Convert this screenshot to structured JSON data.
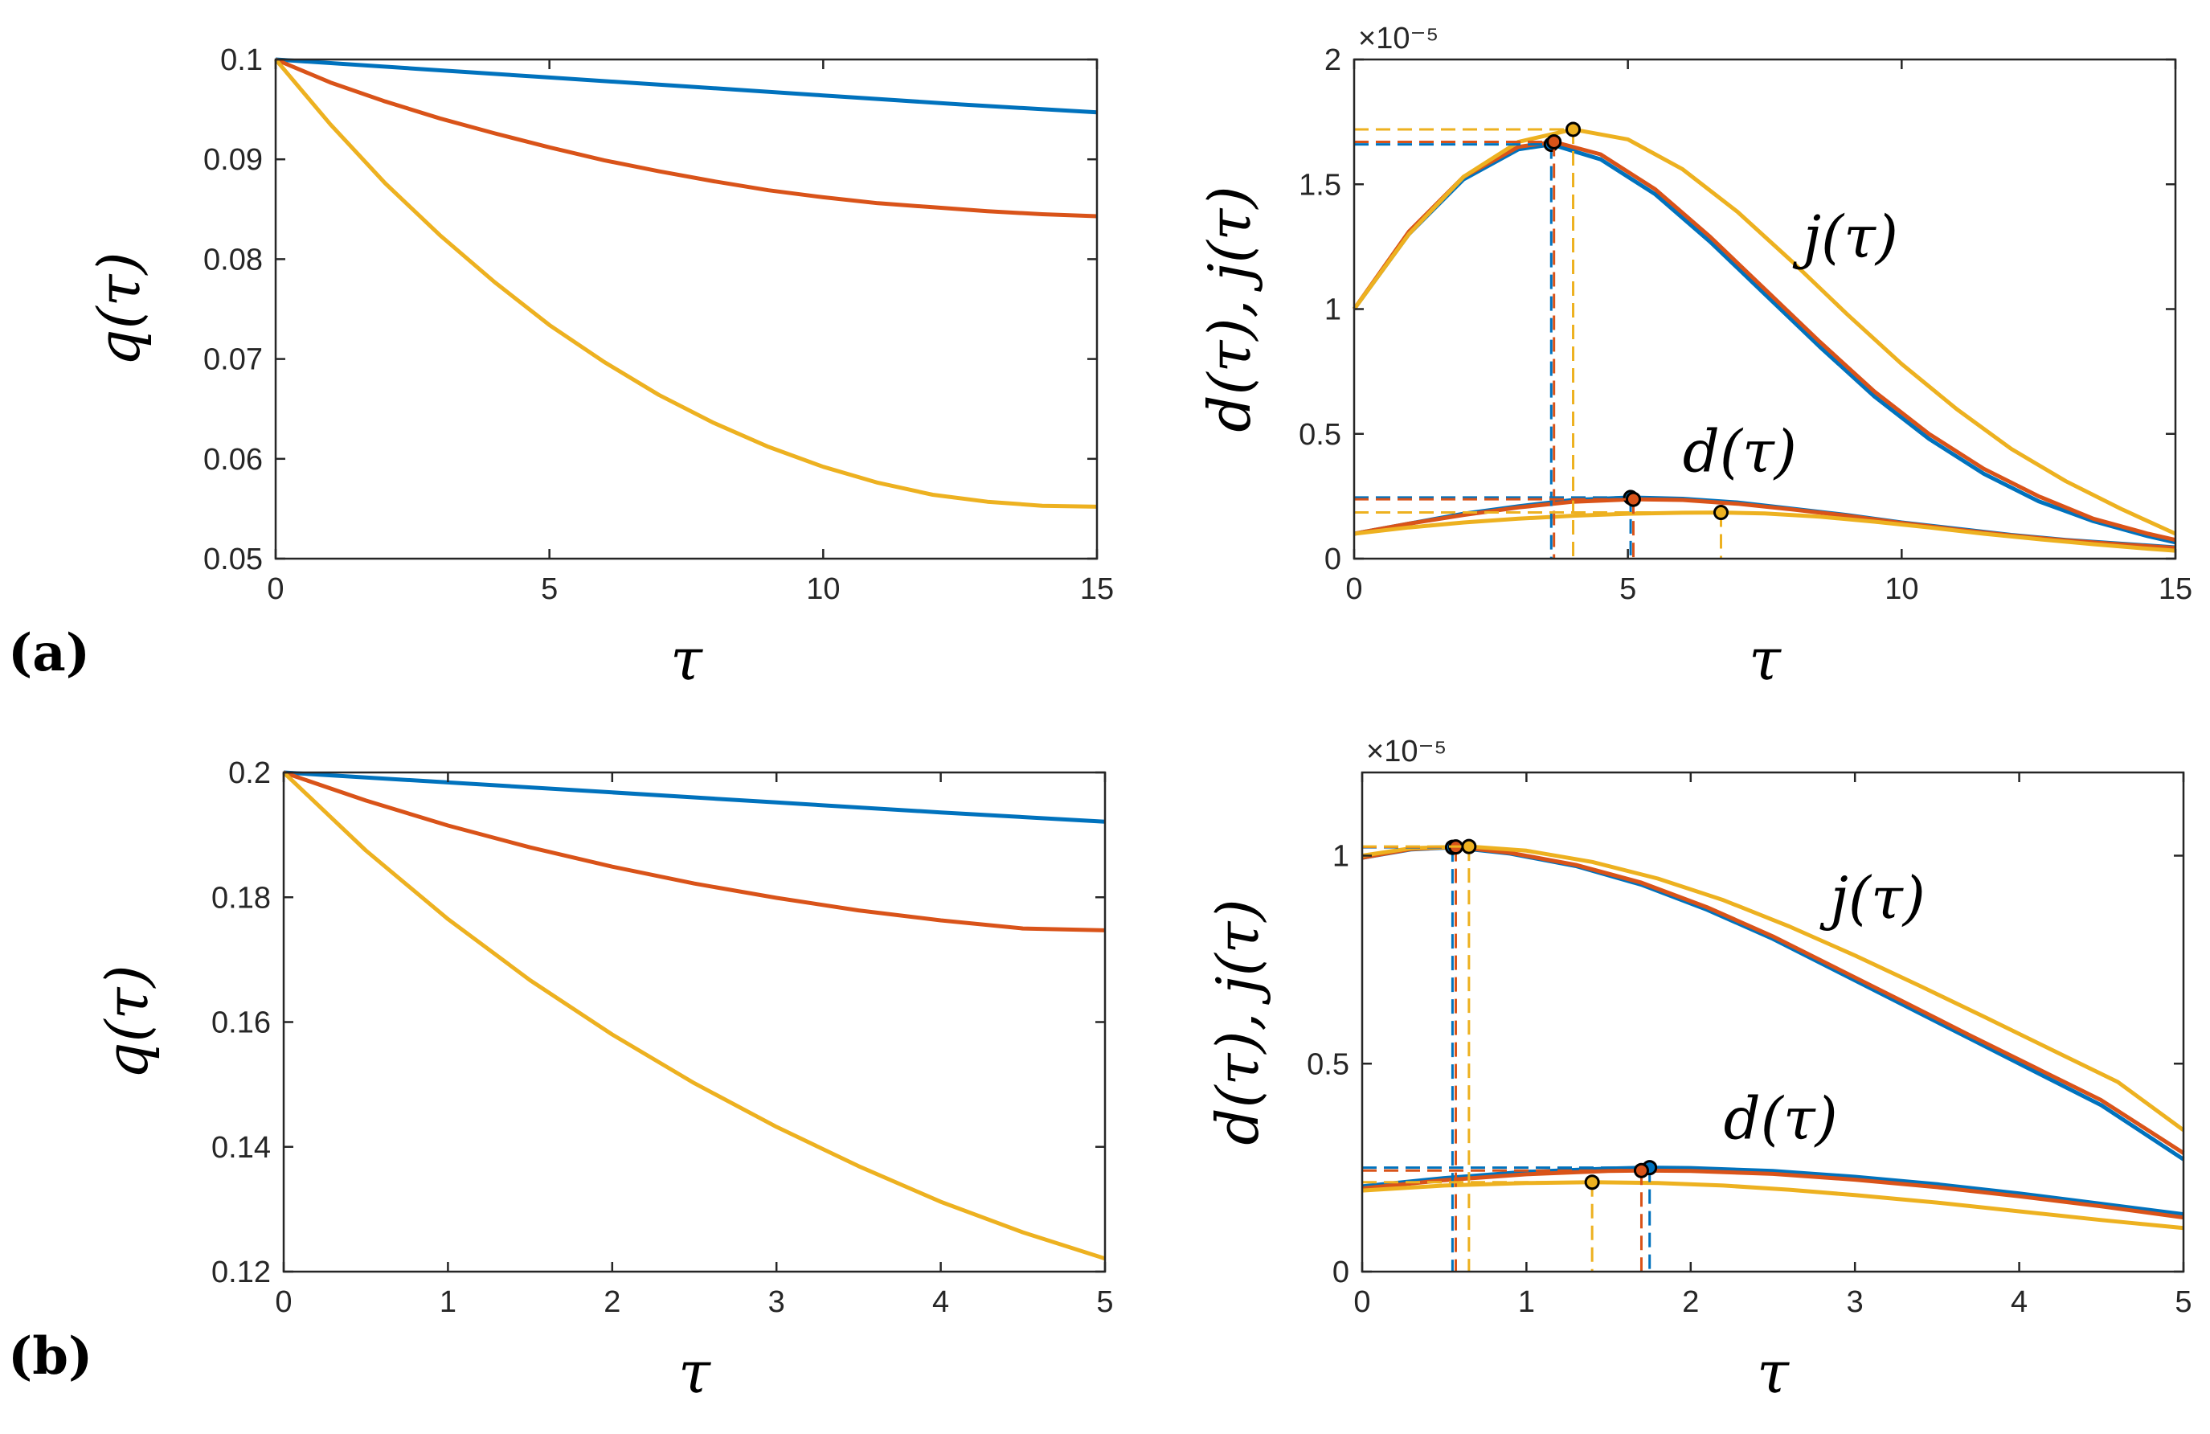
{
  "panel_labels": {
    "a": "(a)",
    "b": "(b)"
  },
  "colors": {
    "blue": "#0072BD",
    "red": "#D95319",
    "yellow": "#EDB120",
    "axis": "#262626"
  },
  "chart_data": [
    {
      "id": "a_left",
      "type": "line",
      "xlabel": "τ",
      "ylabel": "q(τ)",
      "xlim": [
        0,
        15
      ],
      "ylim": [
        0.05,
        0.1
      ],
      "xticks": [
        "0",
        "5",
        "10",
        "15"
      ],
      "yticks": [
        "0.05",
        "0.06",
        "0.07",
        "0.08",
        "0.09",
        "0.1"
      ],
      "grid": false,
      "series": [
        {
          "color": "#0072BD",
          "x": [
            0,
            2.5,
            5,
            7.5,
            10,
            12.5,
            15
          ],
          "y": [
            0.1,
            0.0991,
            0.0982,
            0.0973,
            0.0964,
            0.0955,
            0.0947
          ]
        },
        {
          "color": "#D95319",
          "x": [
            0,
            1,
            2,
            3,
            4,
            5,
            6,
            7,
            8,
            9,
            10,
            11,
            12,
            13,
            14,
            15
          ],
          "y": [
            0.1,
            0.0977,
            0.0958,
            0.0941,
            0.0926,
            0.0912,
            0.0899,
            0.0888,
            0.0878,
            0.0869,
            0.0862,
            0.0856,
            0.0852,
            0.0848,
            0.0845,
            0.0843
          ]
        },
        {
          "color": "#EDB120",
          "x": [
            0,
            1,
            2,
            3,
            4,
            5,
            6,
            7,
            8,
            9,
            10,
            11,
            12,
            13,
            14,
            15
          ],
          "y": [
            0.1,
            0.0935,
            0.0876,
            0.0824,
            0.0777,
            0.0734,
            0.0697,
            0.0664,
            0.0636,
            0.0612,
            0.0592,
            0.0576,
            0.0564,
            0.0557,
            0.0553,
            0.0552
          ]
        }
      ]
    },
    {
      "id": "a_right",
      "type": "line",
      "xlabel": "τ",
      "ylabel": "d(τ), j(τ)",
      "exponent_label": "×10⁻⁵",
      "xlim": [
        0,
        15
      ],
      "ylim": [
        0,
        2
      ],
      "xticks": [
        "0",
        "5",
        "10",
        "15"
      ],
      "yticks": [
        "0",
        "0.5",
        "1",
        "1.5",
        "2"
      ],
      "annotations": [
        {
          "text": "j(τ)",
          "x": 8.2,
          "y": 1.21
        },
        {
          "text": "d(τ)",
          "x": 6.0,
          "y": 0.35
        }
      ],
      "grid": false,
      "series": [
        {
          "group": "j",
          "color": "#0072BD",
          "x": [
            0,
            1,
            2,
            3,
            3.6,
            4.5,
            5.5,
            6.5,
            7.5,
            8.5,
            9.5,
            10.5,
            11.5,
            12.5,
            13.5,
            14.5,
            15
          ],
          "y": [
            1.0,
            1.3,
            1.52,
            1.64,
            1.66,
            1.6,
            1.46,
            1.27,
            1.06,
            0.85,
            0.65,
            0.48,
            0.34,
            0.23,
            0.15,
            0.09,
            0.065
          ]
        },
        {
          "group": "j",
          "color": "#D95319",
          "x": [
            0,
            1,
            2,
            3,
            3.65,
            4.5,
            5.5,
            6.5,
            7.5,
            8.5,
            9.5,
            10.5,
            11.5,
            12.5,
            13.5,
            14.5,
            15
          ],
          "y": [
            1.0,
            1.31,
            1.53,
            1.65,
            1.67,
            1.62,
            1.48,
            1.29,
            1.08,
            0.87,
            0.67,
            0.5,
            0.36,
            0.25,
            0.16,
            0.1,
            0.075
          ]
        },
        {
          "group": "j",
          "color": "#EDB120",
          "x": [
            0,
            1,
            2,
            3,
            4,
            5,
            6,
            7,
            8,
            9,
            10,
            11,
            12,
            13,
            14,
            15
          ],
          "y": [
            1.0,
            1.3,
            1.53,
            1.67,
            1.72,
            1.68,
            1.56,
            1.39,
            1.19,
            0.98,
            0.78,
            0.6,
            0.44,
            0.31,
            0.2,
            0.1
          ]
        },
        {
          "group": "d",
          "color": "#0072BD",
          "x": [
            0,
            1,
            2,
            3,
            4,
            5.05,
            6,
            7,
            8,
            9,
            10,
            11,
            12,
            13,
            14,
            15
          ],
          "y": [
            0.1,
            0.14,
            0.18,
            0.21,
            0.235,
            0.245,
            0.24,
            0.225,
            0.2,
            0.175,
            0.145,
            0.12,
            0.095,
            0.075,
            0.06,
            0.045
          ]
        },
        {
          "group": "d",
          "color": "#D95319",
          "x": [
            0,
            1,
            2,
            3,
            4,
            5.1,
            6,
            7,
            8,
            9,
            10,
            11,
            12,
            13,
            14,
            15
          ],
          "y": [
            0.1,
            0.14,
            0.175,
            0.205,
            0.228,
            0.238,
            0.235,
            0.22,
            0.197,
            0.172,
            0.143,
            0.117,
            0.093,
            0.073,
            0.057,
            0.043
          ]
        },
        {
          "group": "d",
          "color": "#EDB120",
          "x": [
            0,
            1,
            2,
            3,
            4,
            5,
            6,
            6.7,
            7.5,
            8.5,
            9.5,
            10.5,
            11.5,
            12.5,
            13.5,
            14.5,
            15
          ],
          "y": [
            0.1,
            0.125,
            0.145,
            0.16,
            0.172,
            0.18,
            0.184,
            0.185,
            0.181,
            0.168,
            0.148,
            0.125,
            0.1,
            0.078,
            0.058,
            0.04,
            0.032
          ]
        }
      ],
      "markers": [
        {
          "color": "#0072BD",
          "x": 3.6,
          "y": 1.66
        },
        {
          "color": "#D95319",
          "x": 3.65,
          "y": 1.67
        },
        {
          "color": "#EDB120",
          "x": 4.0,
          "y": 1.72
        },
        {
          "color": "#0072BD",
          "x": 5.05,
          "y": 0.245
        },
        {
          "color": "#D95319",
          "x": 5.1,
          "y": 0.238
        },
        {
          "color": "#EDB120",
          "x": 6.7,
          "y": 0.185
        }
      ]
    },
    {
      "id": "b_left",
      "type": "line",
      "xlabel": "τ",
      "ylabel": "q(τ)",
      "xlim": [
        0,
        5
      ],
      "ylim": [
        0.12,
        0.2
      ],
      "xticks": [
        "0",
        "1",
        "2",
        "3",
        "4",
        "5"
      ],
      "yticks": [
        "0.12",
        "0.14",
        "0.16",
        "0.18",
        "0.2"
      ],
      "grid": false,
      "series": [
        {
          "color": "#0072BD",
          "x": [
            0,
            1,
            2,
            3,
            4,
            5
          ],
          "y": [
            0.2,
            0.1984,
            0.1968,
            0.1952,
            0.1936,
            0.1921
          ]
        },
        {
          "color": "#D95319",
          "x": [
            0,
            0.5,
            1,
            1.5,
            2,
            2.5,
            3,
            3.5,
            4,
            4.5,
            5
          ],
          "y": [
            0.2,
            0.1955,
            0.1915,
            0.188,
            0.1849,
            0.1822,
            0.1799,
            0.1779,
            0.1763,
            0.175,
            0.1747
          ]
        },
        {
          "color": "#EDB120",
          "x": [
            0,
            0.5,
            1,
            1.5,
            2,
            2.5,
            3,
            3.5,
            4,
            4.5,
            5
          ],
          "y": [
            0.2,
            0.1875,
            0.1765,
            0.1667,
            0.158,
            0.1502,
            0.1432,
            0.1369,
            0.1312,
            0.1263,
            0.1221
          ]
        }
      ]
    },
    {
      "id": "b_right",
      "type": "line",
      "xlabel": "τ",
      "ylabel": "d(τ), j(τ)",
      "exponent_label": "×10⁻⁵",
      "xlim": [
        0,
        5
      ],
      "ylim": [
        0,
        1.2
      ],
      "xticks": [
        "0",
        "1",
        "2",
        "3",
        "4",
        "5"
      ],
      "yticks": [
        "0",
        "0.5",
        "1"
      ],
      "annotations": [
        {
          "text": "j(τ)",
          "x": 2.85,
          "y": 0.85
        },
        {
          "text": "d(τ)",
          "x": 2.2,
          "y": 0.32
        }
      ],
      "grid": false,
      "series": [
        {
          "group": "j",
          "color": "#0072BD",
          "x": [
            0,
            0.3,
            0.55,
            0.9,
            1.3,
            1.7,
            2.1,
            2.5,
            2.9,
            3.3,
            3.7,
            4.1,
            4.5,
            5
          ],
          "y": [
            0.995,
            1.015,
            1.02,
            1.005,
            0.975,
            0.93,
            0.87,
            0.8,
            0.72,
            0.64,
            0.56,
            0.48,
            0.4,
            0.27
          ]
        },
        {
          "group": "j",
          "color": "#D95319",
          "x": [
            0,
            0.3,
            0.57,
            0.9,
            1.3,
            1.7,
            2.1,
            2.5,
            2.9,
            3.3,
            3.7,
            4.1,
            4.5,
            5
          ],
          "y": [
            0.995,
            1.016,
            1.021,
            1.007,
            0.978,
            0.935,
            0.876,
            0.806,
            0.727,
            0.648,
            0.568,
            0.49,
            0.412,
            0.285
          ]
        },
        {
          "group": "j",
          "color": "#EDB120",
          "x": [
            0,
            0.3,
            0.65,
            1.0,
            1.4,
            1.8,
            2.2,
            2.6,
            3.0,
            3.4,
            3.8,
            4.2,
            4.6,
            5
          ],
          "y": [
            1.0,
            1.018,
            1.022,
            1.012,
            0.985,
            0.945,
            0.893,
            0.83,
            0.76,
            0.686,
            0.61,
            0.533,
            0.456,
            0.34
          ]
        },
        {
          "group": "d",
          "color": "#0072BD",
          "x": [
            0,
            0.5,
            1,
            1.5,
            1.75,
            2,
            2.5,
            3,
            3.5,
            4,
            4.5,
            5
          ],
          "y": [
            0.205,
            0.225,
            0.24,
            0.248,
            0.25,
            0.249,
            0.242,
            0.228,
            0.21,
            0.188,
            0.163,
            0.138
          ]
        },
        {
          "group": "d",
          "color": "#D95319",
          "x": [
            0,
            0.5,
            1,
            1.5,
            1.7,
            2,
            2.5,
            3,
            3.5,
            4,
            4.5,
            5
          ],
          "y": [
            0.2,
            0.22,
            0.234,
            0.242,
            0.243,
            0.242,
            0.235,
            0.221,
            0.203,
            0.181,
            0.157,
            0.13
          ]
        },
        {
          "group": "d",
          "color": "#EDB120",
          "x": [
            0,
            0.5,
            1,
            1.4,
            1.8,
            2.2,
            2.6,
            3,
            3.5,
            4,
            4.5,
            5
          ],
          "y": [
            0.195,
            0.207,
            0.213,
            0.215,
            0.213,
            0.207,
            0.197,
            0.184,
            0.166,
            0.145,
            0.124,
            0.105
          ]
        }
      ],
      "markers": [
        {
          "color": "#0072BD",
          "x": 0.55,
          "y": 1.02
        },
        {
          "color": "#D95319",
          "x": 0.57,
          "y": 1.021
        },
        {
          "color": "#EDB120",
          "x": 0.65,
          "y": 1.022
        },
        {
          "color": "#0072BD",
          "x": 1.75,
          "y": 0.25
        },
        {
          "color": "#D95319",
          "x": 1.7,
          "y": 0.243
        },
        {
          "color": "#EDB120",
          "x": 1.4,
          "y": 0.215
        }
      ]
    }
  ]
}
